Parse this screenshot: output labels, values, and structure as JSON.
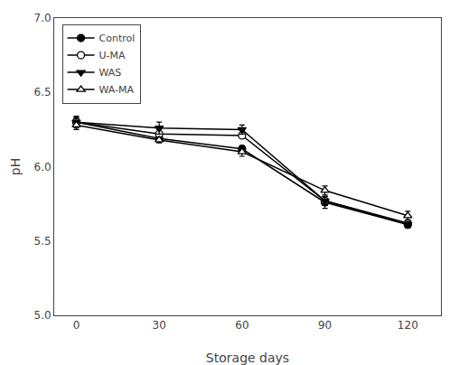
{
  "chart_data": {
    "type": "line",
    "xlabel": "Storage days",
    "ylabel": "pH",
    "x": [
      0,
      30,
      60,
      90,
      120
    ],
    "series": [
      {
        "name": "Control",
        "color": "black",
        "marker": "circle",
        "values": [
          6.3,
          6.19,
          6.12,
          5.76,
          5.61
        ],
        "yerr": [
          0.03,
          0.02,
          0.02,
          0.04,
          0.02
        ]
      },
      {
        "name": "U-MA",
        "color": "black",
        "marker": "circle-open",
        "values": [
          6.3,
          6.22,
          6.21,
          5.77,
          5.62
        ],
        "yerr": [
          0.04,
          0.03,
          0.02,
          0.03,
          0.02
        ]
      },
      {
        "name": "WAS",
        "color": "black",
        "marker": "triangle-down",
        "values": [
          6.3,
          6.26,
          6.25,
          5.77,
          5.61
        ],
        "yerr": [
          0.03,
          0.04,
          0.03,
          0.03,
          0.02
        ]
      },
      {
        "name": "WA-MA",
        "color": "black",
        "marker": "triangle-up-open",
        "values": [
          6.28,
          6.18,
          6.1,
          5.84,
          5.67
        ],
        "yerr": [
          0.03,
          0.02,
          0.03,
          0.03,
          0.03
        ]
      }
    ],
    "xlim": [
      -8,
      132
    ],
    "ylim": [
      5.0,
      7.0
    ],
    "xticks": [
      0,
      30,
      60,
      90,
      120
    ],
    "yticks": [
      {
        "value": 5,
        "label": "5.0"
      },
      5.5,
      {
        "value": 6,
        "label": "6.0"
      },
      6.5,
      {
        "value": 7,
        "label": "7.0"
      }
    ],
    "legend": "upper left",
    "grid": false
  }
}
